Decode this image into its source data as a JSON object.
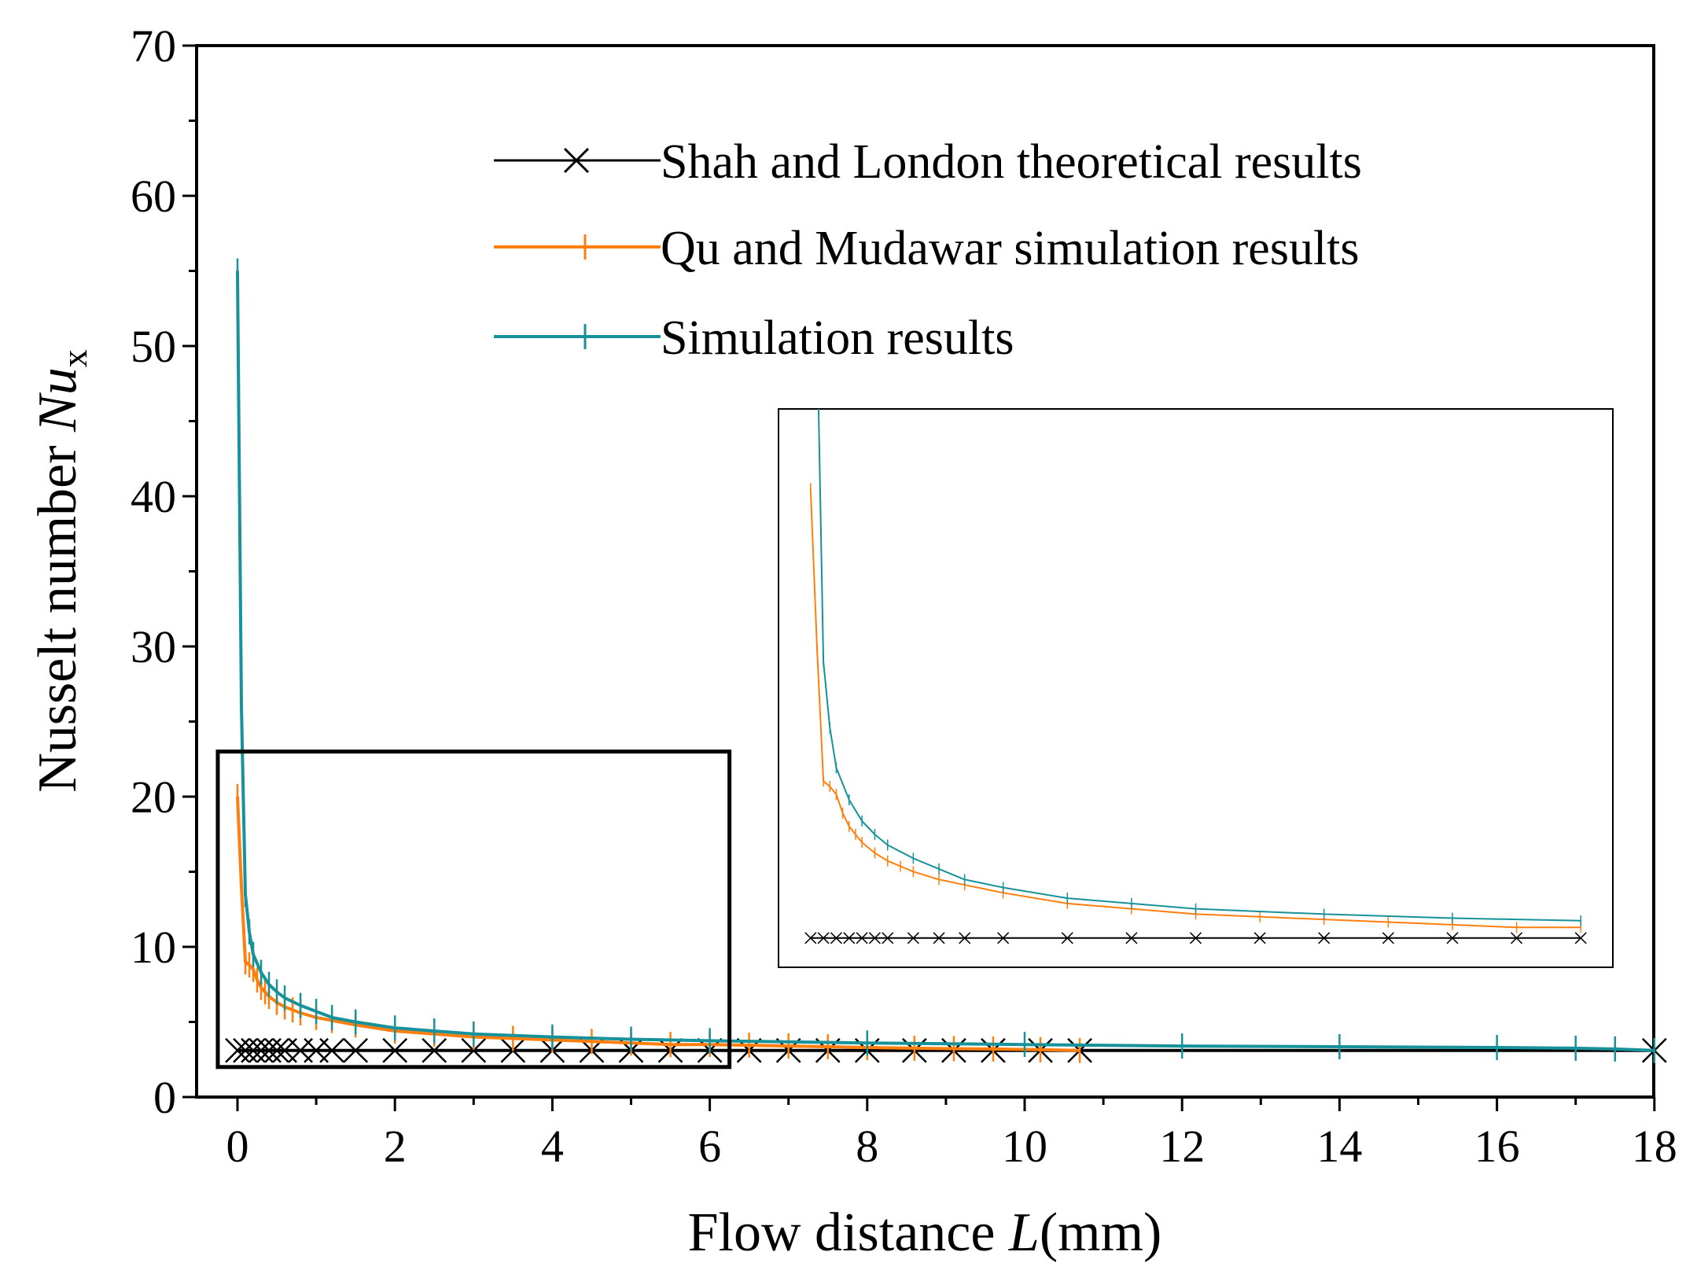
{
  "chart_data": {
    "type": "line",
    "title": "",
    "xlabel_pre": "Flow distance ",
    "xlabel_italic": "L",
    "xlabel_post": "(mm)",
    "ylabel_pre": "Nusselt number ",
    "ylabel_italic": "Nu",
    "ylabel_sub": "x",
    "xlim": [
      -0.5,
      18
    ],
    "ylim": [
      0,
      70
    ],
    "xticks": [
      0,
      2,
      4,
      6,
      8,
      10,
      12,
      14,
      16,
      18
    ],
    "xtick_labels": [
      "0",
      "2",
      "4",
      "6",
      "8",
      "10",
      "12",
      "14",
      "16",
      "18"
    ],
    "yticks": [
      0,
      10,
      20,
      30,
      40,
      50,
      60,
      70
    ],
    "ytick_labels": [
      "0",
      "10",
      "20",
      "30",
      "40",
      "50",
      "60",
      "70"
    ],
    "legend_position": "top-right",
    "series": [
      {
        "name": "Shah and London theoretical results",
        "color": "#000000",
        "marker": "x",
        "x": [
          0.0,
          0.1,
          0.2,
          0.3,
          0.4,
          0.5,
          0.6,
          0.8,
          1.0,
          1.2,
          1.5,
          2.0,
          2.5,
          3.0,
          3.5,
          4.0,
          4.5,
          5.0,
          5.5,
          6.0,
          6.5,
          7.0,
          7.5,
          8.0,
          8.6,
          9.1,
          9.6,
          10.2,
          10.7,
          18.0
        ],
        "y": [
          3.1,
          3.1,
          3.1,
          3.1,
          3.1,
          3.1,
          3.1,
          3.1,
          3.1,
          3.1,
          3.1,
          3.1,
          3.1,
          3.1,
          3.1,
          3.1,
          3.1,
          3.1,
          3.1,
          3.1,
          3.1,
          3.1,
          3.1,
          3.1,
          3.1,
          3.1,
          3.1,
          3.1,
          3.1,
          3.1
        ]
      },
      {
        "name": "Qu and Mudawar simulation results",
        "color": "#ff7f0e",
        "marker": "|",
        "x": [
          0.0,
          0.05,
          0.1,
          0.15,
          0.2,
          0.25,
          0.3,
          0.35,
          0.4,
          0.5,
          0.6,
          0.7,
          0.8,
          1.0,
          1.2,
          1.5,
          2.0,
          2.5,
          3.0,
          3.5,
          4.0,
          4.5,
          5.0,
          5.5,
          6.0,
          6.5,
          7.0,
          7.5,
          8.0,
          8.6,
          9.1,
          9.6,
          10.2,
          10.7
        ],
        "y": [
          20.0,
          14.0,
          9.0,
          8.8,
          8.5,
          7.8,
          7.3,
          7.0,
          6.7,
          6.3,
          6.0,
          5.8,
          5.6,
          5.3,
          5.1,
          4.8,
          4.4,
          4.2,
          4.0,
          3.9,
          3.8,
          3.7,
          3.6,
          3.5,
          3.5,
          3.45,
          3.4,
          3.35,
          3.3,
          3.25,
          3.22,
          3.2,
          3.15,
          3.1
        ]
      },
      {
        "name": "Simulation results",
        "color": "#17929a",
        "marker": "|",
        "x": [
          0.0,
          0.05,
          0.1,
          0.15,
          0.2,
          0.3,
          0.4,
          0.5,
          0.6,
          0.8,
          1.0,
          1.2,
          1.5,
          2.0,
          2.5,
          3.0,
          4.0,
          5.0,
          6.0,
          8.0,
          10.0,
          12.0,
          14.0,
          16.0,
          17.0,
          17.5,
          18.0
        ],
        "y": [
          55.0,
          26.0,
          13.5,
          11.0,
          9.5,
          8.3,
          7.5,
          7.0,
          6.6,
          6.1,
          5.7,
          5.3,
          5.0,
          4.6,
          4.4,
          4.2,
          4.0,
          3.85,
          3.75,
          3.6,
          3.5,
          3.4,
          3.35,
          3.3,
          3.25,
          3.2,
          3.1
        ]
      }
    ],
    "zoom_box": {
      "xlim": [
        -0.25,
        6.25
      ],
      "ylim": [
        2,
        23
      ]
    },
    "inset": {
      "xlim": [
        -0.25,
        6.25
      ],
      "ylim": [
        2,
        23
      ]
    }
  }
}
